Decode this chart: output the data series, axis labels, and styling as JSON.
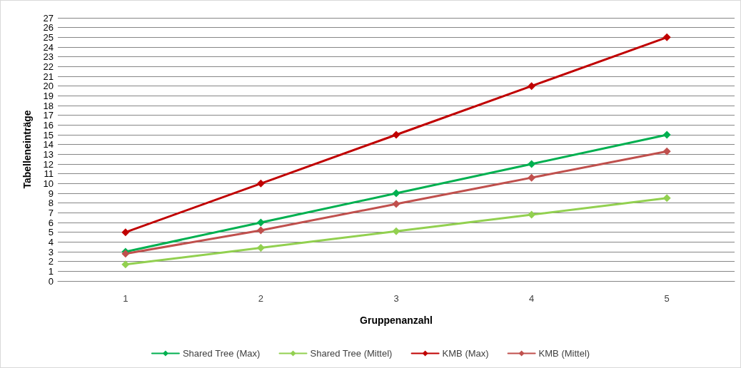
{
  "chart_data": {
    "type": "line",
    "xlabel": "Gruppenanzahl",
    "ylabel": "Tabelleneinträge",
    "categories": [
      "1",
      "2",
      "3",
      "4",
      "5"
    ],
    "series": [
      {
        "name": "Shared Tree (Max)",
        "color": "#00b050",
        "values": [
          3,
          6,
          9,
          12,
          15
        ]
      },
      {
        "name": "Shared Tree (Mittel)",
        "color": "#92d050",
        "values": [
          1.7,
          3.4,
          5.1,
          6.8,
          8.5
        ]
      },
      {
        "name": "KMB (Max)",
        "color": "#c00000",
        "values": [
          5,
          10,
          15,
          20,
          25
        ]
      },
      {
        "name": "KMB (Mittel)",
        "color": "#c0504d",
        "values": [
          2.8,
          5.2,
          7.9,
          10.6,
          13.3
        ]
      }
    ],
    "ylim": [
      0,
      27
    ],
    "yticks": [
      0,
      1,
      2,
      3,
      4,
      5,
      6,
      7,
      8,
      9,
      10,
      11,
      12,
      13,
      14,
      15,
      16,
      17,
      18,
      19,
      20,
      21,
      22,
      23,
      24,
      25,
      26,
      27
    ],
    "grid": "y",
    "legend": "bottom",
    "marker": "diamond",
    "line_style": "solid"
  }
}
